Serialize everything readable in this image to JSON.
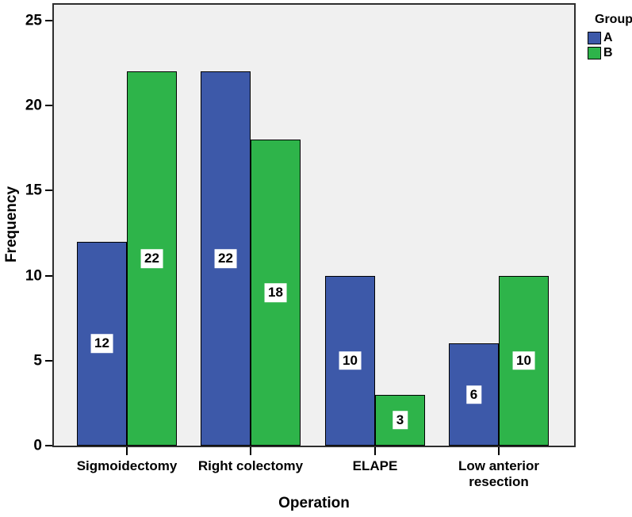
{
  "chart_data": {
    "type": "bar",
    "title": "",
    "xlabel": "Operation",
    "ylabel": "Frequency",
    "categories": [
      "Sigmoidectomy",
      "Right colectomy",
      "ELAPE",
      "Low anterior resection"
    ],
    "series": [
      {
        "name": "A",
        "color": "#3d59a9",
        "values": [
          12,
          22,
          10,
          6
        ]
      },
      {
        "name": "B",
        "color": "#2eb44a",
        "values": [
          22,
          18,
          3,
          10
        ]
      }
    ],
    "bar_value_labels": {
      "A": [
        12,
        22,
        10,
        6
      ],
      "B": [
        22,
        18,
        3,
        10
      ]
    },
    "ylim": [
      0,
      25
    ],
    "yticks": [
      0,
      5,
      10,
      15,
      20,
      25
    ],
    "legend_title": "Group",
    "legend_position": "top-right-outside",
    "grid": false,
    "plot_background": "#f0f0f0",
    "bar_border_color": "#000000",
    "value_label_background": "#ffffff"
  }
}
